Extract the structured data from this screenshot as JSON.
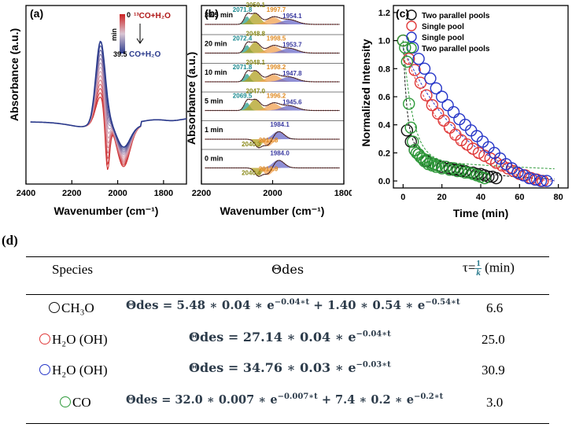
{
  "panel_labels": {
    "a": "(a)",
    "b": "(b)",
    "c": "(c)",
    "d": "(d)"
  },
  "chart_data": [
    {
      "id": "a",
      "type": "line",
      "xlabel": "Wavenumber (cm⁻¹)",
      "ylabel": "Absorbance (a.u.)",
      "xlim": [
        2400,
        1700
      ],
      "xticks": [
        "2400",
        "2200",
        "2000",
        "1800"
      ],
      "colorbar": {
        "label": "min",
        "top_value": "0",
        "top_text": "¹³CO+H₂O",
        "bottom_value": "39.5",
        "bottom_text": "CO+H₂O",
        "top_color": "#cc2222",
        "bottom_color": "#2a3a8c"
      },
      "curve_count": 14
    },
    {
      "id": "b",
      "type": "line",
      "xlabel": "Wavenumber (cm⁻¹)",
      "ylabel": "Absorbance (a.u.)",
      "xlim": [
        2200,
        1800
      ],
      "xticks": [
        "2200",
        "2000",
        "1800"
      ],
      "spectra": [
        {
          "time": "39.5 min",
          "peaks": [
            "2071.8",
            "2050.1",
            "1997.7",
            "1954.1"
          ]
        },
        {
          "time": "20 min",
          "peaks": [
            "2072.4",
            "2048.8",
            "1998.5",
            "1953.7"
          ]
        },
        {
          "time": "10 min",
          "peaks": [
            "2071.8",
            "2048.1",
            "1998.2",
            "1947.8"
          ]
        },
        {
          "time": "5 min",
          "peaks": [
            "2069.5",
            "2047.0",
            "1996.2",
            "1945.6"
          ]
        },
        {
          "time": "1 min",
          "peaks": [
            "2040.3",
            "2013.8",
            "1984.1"
          ]
        },
        {
          "time": "0 min",
          "peaks": [
            "2040.4",
            "2013.9",
            "1984.0"
          ]
        }
      ]
    },
    {
      "id": "c",
      "type": "scatter",
      "xlabel": "Time (min)",
      "ylabel": "Normalized Intensity",
      "xlim": [
        -5,
        85
      ],
      "ylim": [
        -0.05,
        1.25
      ],
      "xticks": [
        0,
        20,
        40,
        60,
        80
      ],
      "yticks": [
        0.0,
        0.2,
        0.4,
        0.6,
        0.8,
        1.0,
        1.2
      ],
      "series": [
        {
          "name": "Two parallel pools",
          "color": "#111111",
          "x": [
            0,
            2,
            4,
            6,
            8,
            10,
            12,
            14,
            16,
            18,
            20,
            22,
            24,
            26,
            28,
            30,
            32,
            34,
            36,
            38,
            40,
            42,
            44,
            46,
            48
          ],
          "y": [
            1.0,
            0.36,
            0.28,
            0.22,
            0.19,
            0.16,
            0.14,
            0.13,
            0.12,
            0.11,
            0.1,
            0.1,
            0.09,
            0.08,
            0.08,
            0.07,
            0.07,
            0.06,
            0.06,
            0.05,
            0.05,
            0.04,
            0.03,
            0.03,
            0.02
          ]
        },
        {
          "name": "Single pool",
          "color": "#e03a3a",
          "x": [
            0,
            3,
            6,
            9,
            12,
            15,
            18,
            21,
            24,
            27,
            30,
            33,
            36,
            39,
            42,
            45,
            48,
            51,
            54,
            57,
            60,
            63,
            66,
            69,
            72
          ],
          "y": [
            1.0,
            0.87,
            0.79,
            0.7,
            0.61,
            0.54,
            0.48,
            0.43,
            0.38,
            0.33,
            0.29,
            0.26,
            0.23,
            0.2,
            0.18,
            0.16,
            0.13,
            0.11,
            0.09,
            0.07,
            0.05,
            0.04,
            0.02,
            0.01,
            0.0
          ]
        },
        {
          "name": "Single pool",
          "color": "#2636c8",
          "x": [
            5,
            8,
            11,
            14,
            17,
            20,
            23,
            26,
            29,
            32,
            35,
            38,
            41,
            44,
            47,
            50,
            53,
            56,
            59,
            62,
            65,
            68,
            71,
            74
          ],
          "y": [
            0.95,
            0.87,
            0.8,
            0.73,
            0.66,
            0.6,
            0.54,
            0.49,
            0.44,
            0.4,
            0.36,
            0.32,
            0.28,
            0.24,
            0.2,
            0.16,
            0.12,
            0.09,
            0.06,
            0.04,
            0.02,
            0.01,
            0.0,
            0.0
          ]
        },
        {
          "name": "Two parallel pools",
          "color": "#2e9a3a",
          "x": [
            0,
            1,
            2,
            3,
            4,
            5,
            6,
            7,
            8,
            9,
            10,
            11,
            12,
            13,
            14,
            15,
            16,
            17,
            18,
            20,
            22,
            24,
            26,
            28,
            30,
            32,
            34,
            36,
            38,
            40,
            42
          ],
          "y": [
            1.0,
            0.95,
            0.85,
            0.55,
            0.38,
            0.28,
            0.22,
            0.2,
            0.19,
            0.17,
            0.16,
            0.14,
            0.15,
            0.12,
            0.13,
            0.11,
            0.12,
            0.1,
            0.11,
            0.09,
            0.1,
            0.08,
            0.09,
            0.07,
            0.08,
            0.06,
            0.06,
            0.05,
            0.04,
            0.03,
            0.02
          ]
        }
      ]
    }
  ],
  "table": {
    "headers": {
      "species": "Species",
      "theta": "Θdes",
      "tau": "τ=",
      "tau_frac_num": "1",
      "tau_frac_den": "k",
      "tau_unit": "(min)"
    },
    "rows": [
      {
        "circle_color": "#111111",
        "species": "CH₃O",
        "eq_main": "Θdes = 5.48 ∗ 0.04 ∗ e",
        "eq_exp1": "−0.04∗t",
        "eq_mid": " + 1.40 ∗ 0.54 ∗ e",
        "eq_exp2": "−0.54∗t",
        "tau": "6.6"
      },
      {
        "circle_color": "#e03a3a",
        "species": "H₂O (OH)",
        "eq_main": "Θdes = 27.14 ∗ 0.04 ∗ e",
        "eq_exp1": "−0.04∗t",
        "eq_mid": "",
        "eq_exp2": "",
        "tau": "25.0"
      },
      {
        "circle_color": "#2636c8",
        "species": "H₂O (OH)",
        "eq_main": "Θdes = 34.76 ∗ 0.03 ∗ e",
        "eq_exp1": "−0.03∗t",
        "eq_mid": "",
        "eq_exp2": "",
        "tau": "30.9"
      },
      {
        "circle_color": "#2e9a3a",
        "species": "CO",
        "eq_main": "Θdes = 32.0 ∗ 0.007 ∗ e",
        "eq_exp1": "−0.007∗t",
        "eq_mid": " + 7.4 ∗ 0.2 ∗ e",
        "eq_exp2": "−0.2∗t",
        "tau": "3.0"
      }
    ]
  }
}
